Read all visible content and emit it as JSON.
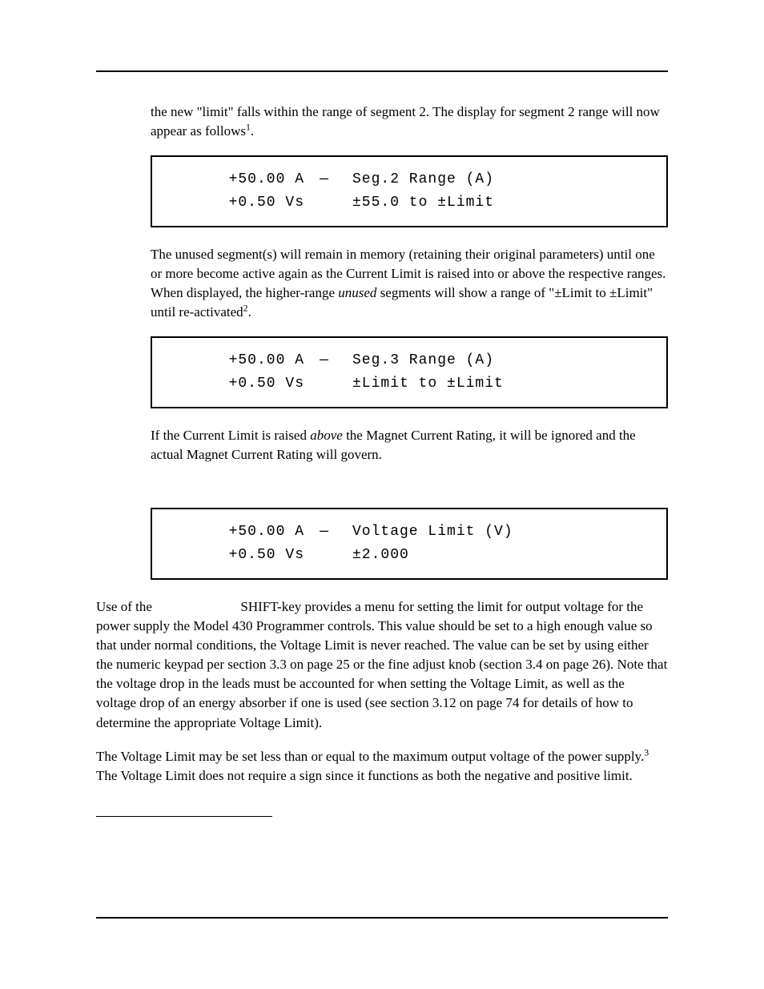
{
  "para1_a": "the new \"limit\" falls within the range of segment 2. The display for segment 2 range will now appear as follows",
  "para1_sup": "1",
  "para1_b": ".",
  "box1": {
    "r1_left": "+50.00 A",
    "r1_mid": "—",
    "r1_right": "Seg.2 Range (A)",
    "r2_left": "+0.50 Vs",
    "r2_mid": "",
    "r2_right": "±55.0 to ±Limit"
  },
  "para2_a": "The unused segment(s) will remain in memory (retaining their original parameters) until one or more become active again as the Current Limit is raised into or above the respective ranges. When displayed, the higher-range ",
  "para2_em": "unused",
  "para2_b": " segments will show a range of \"±Limit to ±Limit\" until re-activated",
  "para2_sup": "2",
  "para2_c": ".",
  "box2": {
    "r1_left": "+50.00 A",
    "r1_mid": "—",
    "r1_right": "Seg.3 Range (A)",
    "r2_left": "+0.50 Vs",
    "r2_mid": "",
    "r2_right": "±Limit to ±Limit"
  },
  "para3_a": "If the Current Limit is raised ",
  "para3_em": "above",
  "para3_b": " the Magnet Current Rating, it will be ignored and the actual Magnet Current Rating will govern.",
  "box3": {
    "r1_left": "+50.00 A",
    "r1_mid": "—",
    "r1_right": "Voltage Limit (V)",
    "r2_left": "+0.50 Vs",
    "r2_mid": "",
    "r2_right": "±2.000"
  },
  "para4_a": "Use of the",
  "para4_b": "SHIFT-key provides a menu for setting the limit for output voltage for the power supply the Model 430 Programmer controls. This value should be set to a high enough value so that under normal conditions, the Voltage Limit is never reached. The value can be set by using either the numeric keypad per section 3.3 on page 25 or the fine adjust knob (section 3.4 on page 26). Note that the voltage drop in the leads must be accounted for when setting the Voltage Limit, as well as the voltage drop of an energy absorber if one is used (see section 3.12 on page 74 for details of how to determine the appropriate Voltage Limit).",
  "para5_a": "The Voltage Limit may be set less than or equal to the maximum output voltage of the power supply.",
  "para5_sup": "3",
  "para5_b": "  The Voltage Limit does not require a sign since it functions as both the negative and positive limit."
}
